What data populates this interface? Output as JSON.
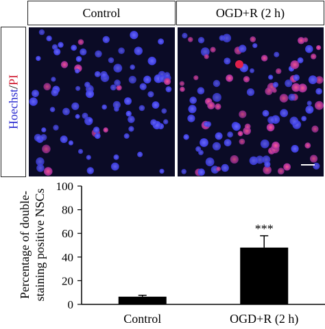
{
  "panel_headers": [
    "Control",
    "OGD+R (2 h)"
  ],
  "row_label": {
    "stain1": "Hoechst",
    "separator": "/",
    "stain2": "PI"
  },
  "colors": {
    "hoechst": "#3a3ae0",
    "pi": "#e0204a",
    "background": "#0b0b26"
  },
  "chart_data": {
    "type": "bar",
    "categories": [
      "Control",
      "OGD+R (2 h)"
    ],
    "values": [
      6.5,
      48
    ],
    "errors": [
      1.2,
      10
    ],
    "annotations": [
      "",
      "***"
    ],
    "ylabel_lines": [
      "Percentage of double-",
      "staining positive NSCs"
    ],
    "yticks": [
      0,
      20,
      40,
      60,
      80,
      100
    ],
    "ylim": [
      0,
      100
    ],
    "grid": false
  }
}
